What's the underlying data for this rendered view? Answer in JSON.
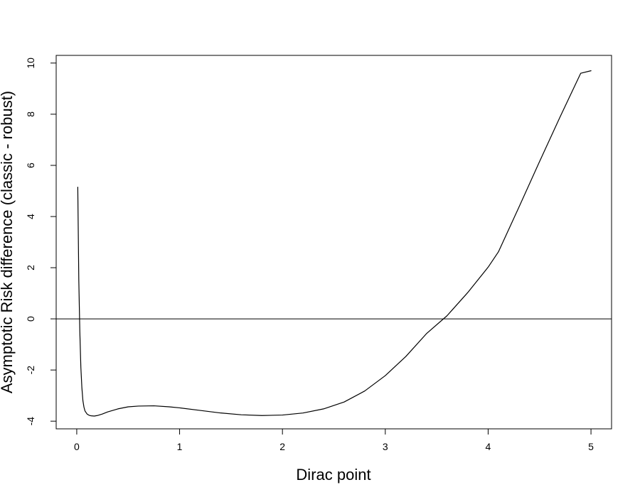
{
  "chart_data": {
    "type": "line",
    "title": "",
    "xlabel": "Dirac point",
    "ylabel": "Asymptotic Risk difference (classic - robust)",
    "xlim": [
      -0.2,
      5.2
    ],
    "ylim": [
      -4.3,
      10.3
    ],
    "xticks": [
      0,
      1,
      2,
      3,
      4,
      5
    ],
    "yticks": [
      -4,
      -2,
      0,
      2,
      4,
      6,
      8,
      10
    ],
    "xtick_labels": [
      "0",
      "1",
      "2",
      "3",
      "4",
      "5"
    ],
    "ytick_labels": [
      "-4",
      "-2",
      "0",
      "2",
      "4",
      "6",
      "8",
      "10"
    ],
    "grid": false,
    "legend": "none",
    "reference_lines": [
      {
        "orientation": "horizontal",
        "y": 0
      }
    ],
    "series": [
      {
        "x": [
          0.01,
          0.02,
          0.03,
          0.04,
          0.05,
          0.06,
          0.07,
          0.08,
          0.1,
          0.12,
          0.14,
          0.17,
          0.2,
          0.25,
          0.3,
          0.4,
          0.5,
          0.6,
          0.75,
          0.9,
          1.0,
          1.2,
          1.4,
          1.6,
          1.8,
          2.0,
          2.2,
          2.4,
          2.6,
          2.8,
          3.0,
          3.2,
          3.4,
          3.6,
          3.8,
          4.0,
          4.1,
          4.3,
          4.5,
          4.7,
          4.9,
          5.0
        ],
        "values": [
          5.15,
          1.5,
          -0.5,
          -1.9,
          -2.7,
          -3.2,
          -3.45,
          -3.6,
          -3.72,
          -3.77,
          -3.79,
          -3.8,
          -3.78,
          -3.72,
          -3.64,
          -3.52,
          -3.44,
          -3.41,
          -3.4,
          -3.44,
          -3.48,
          -3.58,
          -3.68,
          -3.75,
          -3.78,
          -3.76,
          -3.68,
          -3.52,
          -3.25,
          -2.82,
          -2.22,
          -1.47,
          -0.58,
          0.12,
          1.02,
          2.02,
          2.62,
          4.37,
          6.15,
          7.9,
          9.6,
          9.7
        ]
      }
    ]
  }
}
